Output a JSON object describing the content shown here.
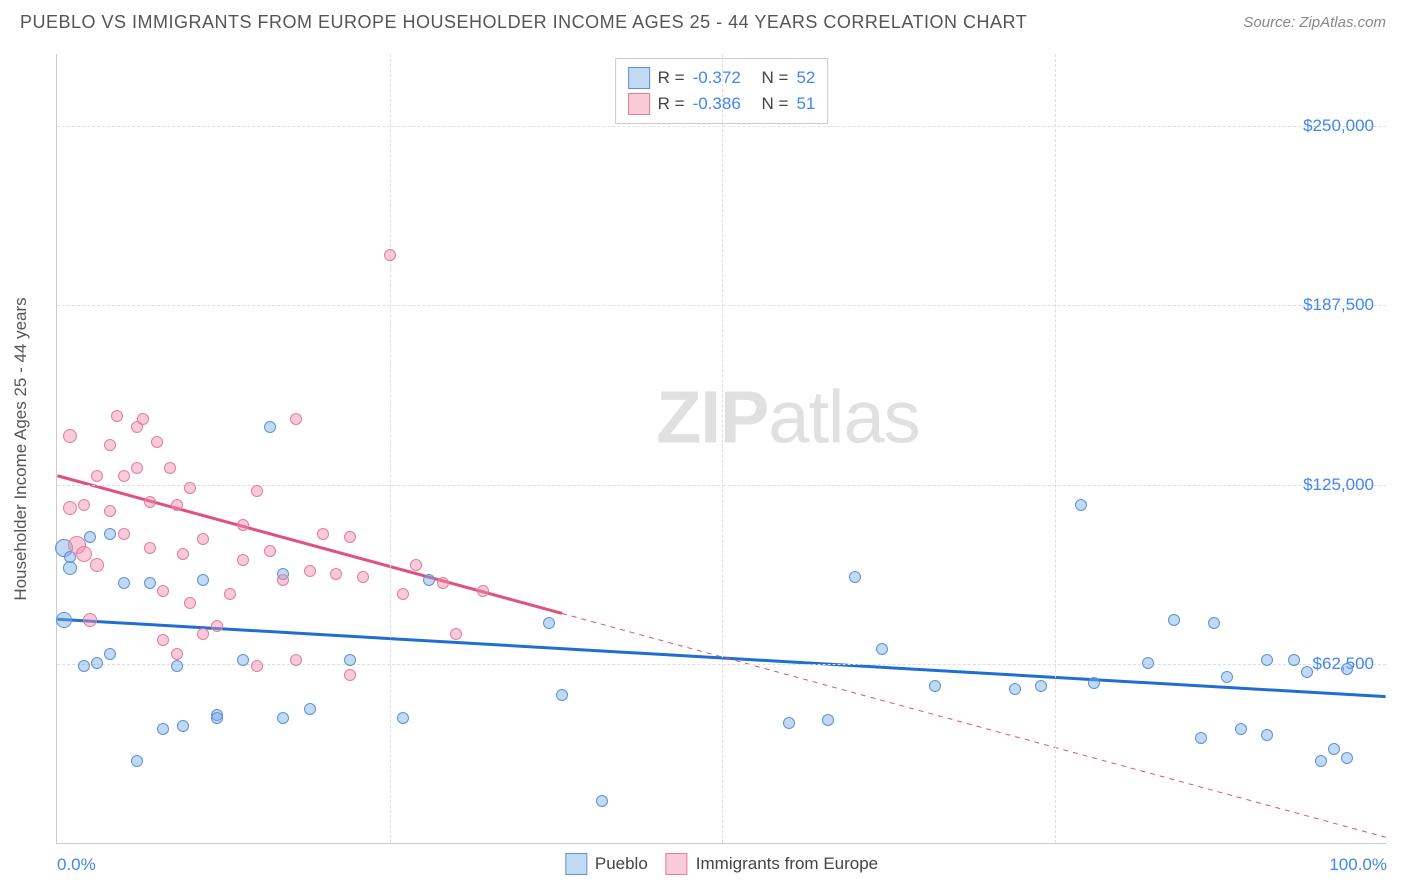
{
  "title": "PUEBLO VS IMMIGRANTS FROM EUROPE HOUSEHOLDER INCOME AGES 25 - 44 YEARS CORRELATION CHART",
  "source_label": "Source:",
  "source_name": "ZipAtlas.com",
  "y_axis_label": "Householder Income Ages 25 - 44 years",
  "watermark_a": "ZIP",
  "watermark_b": "atlas",
  "chart": {
    "type": "scatter",
    "xlim": [
      0,
      100
    ],
    "ylim": [
      0,
      275000
    ],
    "x_tick_min_label": "0.0%",
    "x_tick_max_label": "100.0%",
    "y_ticks": [
      62500,
      125000,
      187500,
      250000
    ],
    "y_tick_labels": [
      "$62,500",
      "$125,000",
      "$187,500",
      "$250,000"
    ],
    "x_grid": [
      25,
      50,
      75
    ],
    "background_color": "#ffffff",
    "grid_color": "#dddddd",
    "axis_color": "#cccccc",
    "label_color": "#4285f4",
    "series": [
      {
        "name": "Pueblo",
        "fill": "rgba(120,170,230,0.45)",
        "stroke": "#5a93d6",
        "line_color": "#1f6fd0",
        "r_label": "R =",
        "r_value": "-0.372",
        "n_label": "N =",
        "n_value": "52",
        "trend": {
          "x1": 0,
          "y1": 78000,
          "x2": 100,
          "y2": 51000
        },
        "points": [
          {
            "x": 0.5,
            "y": 103000,
            "s": 18
          },
          {
            "x": 0.5,
            "y": 78000,
            "s": 16
          },
          {
            "x": 1,
            "y": 96000,
            "s": 14
          },
          {
            "x": 1,
            "y": 100000,
            "s": 12
          },
          {
            "x": 2,
            "y": 62000,
            "s": 12
          },
          {
            "x": 2.5,
            "y": 107000,
            "s": 12
          },
          {
            "x": 3,
            "y": 63000,
            "s": 12
          },
          {
            "x": 4,
            "y": 108000,
            "s": 12
          },
          {
            "x": 4,
            "y": 66000,
            "s": 12
          },
          {
            "x": 5,
            "y": 91000,
            "s": 12
          },
          {
            "x": 6,
            "y": 29000,
            "s": 12
          },
          {
            "x": 7,
            "y": 91000,
            "s": 12
          },
          {
            "x": 8,
            "y": 40000,
            "s": 12
          },
          {
            "x": 9,
            "y": 62000,
            "s": 12
          },
          {
            "x": 9.5,
            "y": 41000,
            "s": 12
          },
          {
            "x": 11,
            "y": 92000,
            "s": 12
          },
          {
            "x": 12,
            "y": 45000,
            "s": 12
          },
          {
            "x": 12,
            "y": 44000,
            "s": 12
          },
          {
            "x": 14,
            "y": 64000,
            "s": 12
          },
          {
            "x": 16,
            "y": 145000,
            "s": 12
          },
          {
            "x": 17,
            "y": 44000,
            "s": 12
          },
          {
            "x": 17,
            "y": 94000,
            "s": 12
          },
          {
            "x": 19,
            "y": 47000,
            "s": 12
          },
          {
            "x": 22,
            "y": 64000,
            "s": 12
          },
          {
            "x": 26,
            "y": 44000,
            "s": 12
          },
          {
            "x": 28,
            "y": 92000,
            "s": 12
          },
          {
            "x": 37,
            "y": 77000,
            "s": 12
          },
          {
            "x": 38,
            "y": 52000,
            "s": 12
          },
          {
            "x": 41,
            "y": 15000,
            "s": 12
          },
          {
            "x": 55,
            "y": 42000,
            "s": 12
          },
          {
            "x": 58,
            "y": 43000,
            "s": 12
          },
          {
            "x": 60,
            "y": 93000,
            "s": 12
          },
          {
            "x": 62,
            "y": 68000,
            "s": 12
          },
          {
            "x": 66,
            "y": 55000,
            "s": 12
          },
          {
            "x": 72,
            "y": 54000,
            "s": 12
          },
          {
            "x": 74,
            "y": 55000,
            "s": 12
          },
          {
            "x": 77,
            "y": 118000,
            "s": 12
          },
          {
            "x": 78,
            "y": 56000,
            "s": 12
          },
          {
            "x": 82,
            "y": 63000,
            "s": 12
          },
          {
            "x": 84,
            "y": 78000,
            "s": 12
          },
          {
            "x": 86,
            "y": 37000,
            "s": 12
          },
          {
            "x": 87,
            "y": 77000,
            "s": 12
          },
          {
            "x": 88,
            "y": 58000,
            "s": 12
          },
          {
            "x": 89,
            "y": 40000,
            "s": 12
          },
          {
            "x": 91,
            "y": 64000,
            "s": 12
          },
          {
            "x": 91,
            "y": 38000,
            "s": 12
          },
          {
            "x": 93,
            "y": 64000,
            "s": 12
          },
          {
            "x": 94,
            "y": 60000,
            "s": 12
          },
          {
            "x": 95,
            "y": 29000,
            "s": 12
          },
          {
            "x": 96,
            "y": 33000,
            "s": 12
          },
          {
            "x": 97,
            "y": 30000,
            "s": 12
          },
          {
            "x": 97,
            "y": 61000,
            "s": 12
          }
        ]
      },
      {
        "name": "Immigrants from Europe",
        "fill": "rgba(240,140,170,0.45)",
        "stroke": "#e77ba0",
        "line_color": "#e0517f",
        "r_label": "R =",
        "r_value": "-0.386",
        "n_label": "N =",
        "n_value": "51",
        "trend": {
          "x1": 0,
          "y1": 128000,
          "x2": 38,
          "y2": 80000
        },
        "trend_ext": {
          "x1": 38,
          "y1": 80000,
          "x2": 100,
          "y2": 2000
        },
        "points": [
          {
            "x": 1,
            "y": 142000,
            "s": 14
          },
          {
            "x": 1,
            "y": 117000,
            "s": 14
          },
          {
            "x": 1.5,
            "y": 104000,
            "s": 18
          },
          {
            "x": 2,
            "y": 118000,
            "s": 12
          },
          {
            "x": 2,
            "y": 101000,
            "s": 16
          },
          {
            "x": 2.5,
            "y": 78000,
            "s": 14
          },
          {
            "x": 3,
            "y": 97000,
            "s": 14
          },
          {
            "x": 3,
            "y": 128000,
            "s": 12
          },
          {
            "x": 4,
            "y": 139000,
            "s": 12
          },
          {
            "x": 4,
            "y": 116000,
            "s": 12
          },
          {
            "x": 4.5,
            "y": 149000,
            "s": 12
          },
          {
            "x": 5,
            "y": 128000,
            "s": 12
          },
          {
            "x": 5,
            "y": 108000,
            "s": 12
          },
          {
            "x": 6,
            "y": 145000,
            "s": 12
          },
          {
            "x": 6,
            "y": 131000,
            "s": 12
          },
          {
            "x": 6.5,
            "y": 148000,
            "s": 12
          },
          {
            "x": 7,
            "y": 119000,
            "s": 12
          },
          {
            "x": 7,
            "y": 103000,
            "s": 12
          },
          {
            "x": 7.5,
            "y": 140000,
            "s": 12
          },
          {
            "x": 8,
            "y": 88000,
            "s": 12
          },
          {
            "x": 8,
            "y": 71000,
            "s": 12
          },
          {
            "x": 8.5,
            "y": 131000,
            "s": 12
          },
          {
            "x": 9,
            "y": 66000,
            "s": 12
          },
          {
            "x": 9,
            "y": 118000,
            "s": 12
          },
          {
            "x": 9.5,
            "y": 101000,
            "s": 12
          },
          {
            "x": 10,
            "y": 84000,
            "s": 12
          },
          {
            "x": 10,
            "y": 124000,
            "s": 12
          },
          {
            "x": 11,
            "y": 106000,
            "s": 12
          },
          {
            "x": 11,
            "y": 73000,
            "s": 12
          },
          {
            "x": 12,
            "y": 76000,
            "s": 12
          },
          {
            "x": 13,
            "y": 87000,
            "s": 12
          },
          {
            "x": 14,
            "y": 99000,
            "s": 12
          },
          {
            "x": 14,
            "y": 111000,
            "s": 12
          },
          {
            "x": 15,
            "y": 123000,
            "s": 12
          },
          {
            "x": 15,
            "y": 62000,
            "s": 12
          },
          {
            "x": 16,
            "y": 102000,
            "s": 12
          },
          {
            "x": 17,
            "y": 92000,
            "s": 12
          },
          {
            "x": 18,
            "y": 148000,
            "s": 12
          },
          {
            "x": 18,
            "y": 64000,
            "s": 12
          },
          {
            "x": 19,
            "y": 95000,
            "s": 12
          },
          {
            "x": 20,
            "y": 108000,
            "s": 12
          },
          {
            "x": 21,
            "y": 94000,
            "s": 12
          },
          {
            "x": 22,
            "y": 107000,
            "s": 12
          },
          {
            "x": 22,
            "y": 59000,
            "s": 12
          },
          {
            "x": 23,
            "y": 93000,
            "s": 12
          },
          {
            "x": 25,
            "y": 205000,
            "s": 12
          },
          {
            "x": 26,
            "y": 87000,
            "s": 12
          },
          {
            "x": 27,
            "y": 97000,
            "s": 12
          },
          {
            "x": 29,
            "y": 91000,
            "s": 12
          },
          {
            "x": 30,
            "y": 73000,
            "s": 12
          },
          {
            "x": 32,
            "y": 88000,
            "s": 12
          }
        ]
      }
    ]
  }
}
